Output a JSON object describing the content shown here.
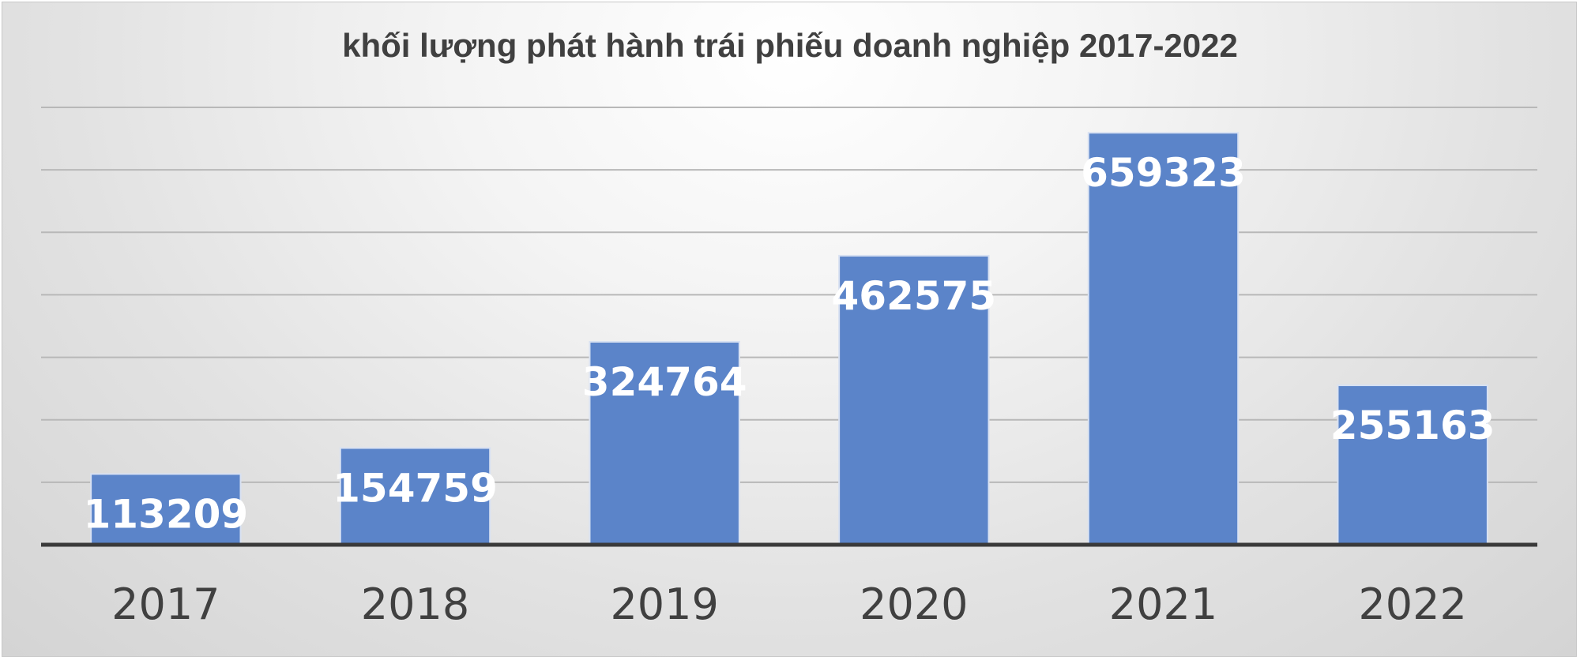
{
  "chart_data": {
    "type": "bar",
    "title": "khối lượng phát hành trái phiếu doanh nghiệp 2017-2022",
    "categories": [
      "2017",
      "2018",
      "2019",
      "2020",
      "2021",
      "2022"
    ],
    "values": [
      113209,
      154759,
      324764,
      462575,
      659323,
      255163
    ],
    "xlabel": "",
    "ylabel": "",
    "ylim": [
      0,
      700000
    ],
    "grid": true,
    "legend": "none",
    "data_labels": "inside-end",
    "colors": {
      "bar": "#5b84c9",
      "bar_border": "#d8e1f2",
      "gridline": "#b8b8b8",
      "axis": "#3a3a3a"
    }
  }
}
